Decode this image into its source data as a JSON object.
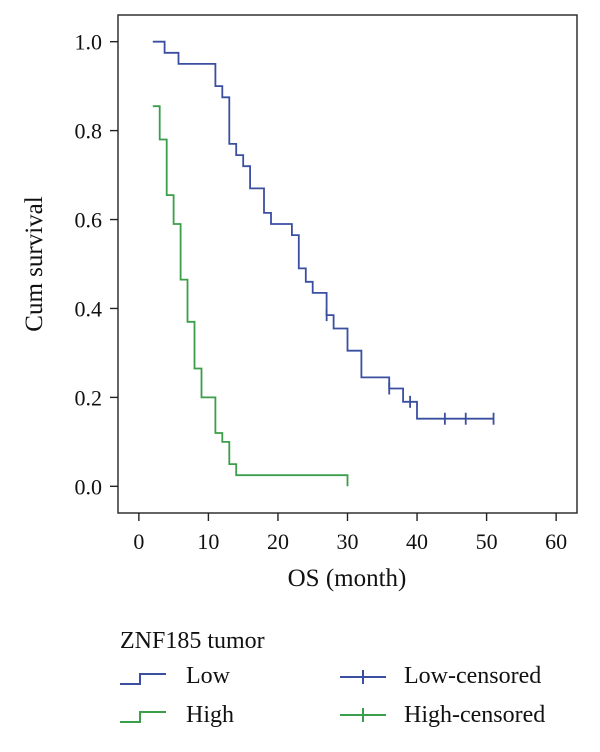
{
  "chart_data": {
    "type": "line",
    "subtype": "kaplan-meier step",
    "xlabel": "OS (month)",
    "ylabel": "Cum survival",
    "xlim": [
      -3,
      63
    ],
    "ylim": [
      -0.06,
      1.06
    ],
    "xticks": [
      0,
      10,
      20,
      30,
      40,
      50,
      60
    ],
    "yticks": [
      0.0,
      0.2,
      0.4,
      0.6,
      0.8,
      1.0
    ],
    "yticklabels": [
      "0.0",
      "0.2",
      "0.4",
      "0.6",
      "0.8",
      "1.0"
    ],
    "grid": false,
    "legend": {
      "title": "ZNF185 tumor",
      "placement": "bottom",
      "entries": [
        "Low",
        "High",
        "Low-censored",
        "High-censored"
      ]
    },
    "series": [
      {
        "name": "Low",
        "color": "#3a4fa0",
        "points": [
          [
            2,
            1.0
          ],
          [
            3.7,
            1.0
          ],
          [
            3.7,
            0.975
          ],
          [
            5.7,
            0.975
          ],
          [
            5.7,
            0.95
          ],
          [
            11,
            0.95
          ],
          [
            11,
            0.9
          ],
          [
            12,
            0.9
          ],
          [
            12,
            0.875
          ],
          [
            13,
            0.875
          ],
          [
            13,
            0.77
          ],
          [
            14,
            0.77
          ],
          [
            14,
            0.745
          ],
          [
            15,
            0.745
          ],
          [
            15,
            0.72
          ],
          [
            16,
            0.72
          ],
          [
            16,
            0.67
          ],
          [
            18,
            0.67
          ],
          [
            18,
            0.615
          ],
          [
            19,
            0.615
          ],
          [
            19,
            0.59
          ],
          [
            22,
            0.59
          ],
          [
            22,
            0.565
          ],
          [
            23,
            0.565
          ],
          [
            23,
            0.49
          ],
          [
            24,
            0.49
          ],
          [
            24,
            0.46
          ],
          [
            25,
            0.46
          ],
          [
            25,
            0.435
          ],
          [
            27,
            0.435
          ],
          [
            27,
            0.385
          ],
          [
            28,
            0.385
          ],
          [
            28,
            0.355
          ],
          [
            30,
            0.355
          ],
          [
            30,
            0.305
          ],
          [
            32,
            0.305
          ],
          [
            32,
            0.245
          ],
          [
            36,
            0.245
          ],
          [
            36,
            0.22
          ],
          [
            38,
            0.22
          ],
          [
            38,
            0.19
          ],
          [
            40,
            0.19
          ],
          [
            40,
            0.152
          ],
          [
            51,
            0.152
          ]
        ],
        "censored": [
          [
            27,
            0.385
          ],
          [
            36,
            0.22
          ],
          [
            39,
            0.19
          ],
          [
            44,
            0.152
          ],
          [
            47,
            0.152
          ],
          [
            51,
            0.152
          ]
        ]
      },
      {
        "name": "High",
        "color": "#3a9e4a",
        "points": [
          [
            2,
            0.855
          ],
          [
            3,
            0.855
          ],
          [
            3,
            0.78
          ],
          [
            4,
            0.78
          ],
          [
            4,
            0.655
          ],
          [
            5,
            0.655
          ],
          [
            5,
            0.59
          ],
          [
            6,
            0.59
          ],
          [
            6,
            0.465
          ],
          [
            7,
            0.465
          ],
          [
            7,
            0.37
          ],
          [
            8,
            0.37
          ],
          [
            8,
            0.265
          ],
          [
            9,
            0.265
          ],
          [
            9,
            0.2
          ],
          [
            11,
            0.2
          ],
          [
            11,
            0.12
          ],
          [
            12,
            0.12
          ],
          [
            12,
            0.1
          ],
          [
            13,
            0.1
          ],
          [
            13,
            0.05
          ],
          [
            14,
            0.05
          ],
          [
            14,
            0.025
          ],
          [
            30,
            0.025
          ],
          [
            30,
            0.0
          ]
        ],
        "censored": []
      }
    ]
  }
}
